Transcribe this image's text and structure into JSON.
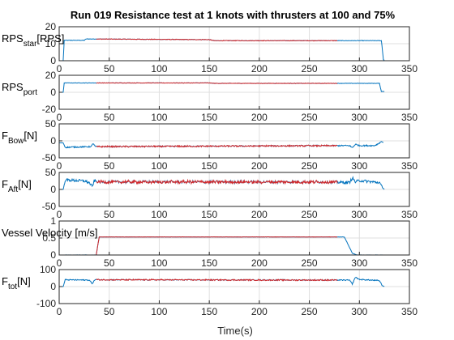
{
  "chart_data": {
    "type": "line",
    "title": "Run 019 Resistance test at 1 knots with thrusters at 100 and 75%",
    "xlabel": "Time(s)",
    "xlim": [
      0,
      350
    ],
    "xticks": [
      "0",
      "50",
      "100",
      "150",
      "200",
      "250",
      "300",
      "350"
    ],
    "series_colors": {
      "full_run": "#0072BD",
      "steady_window": "#D62728"
    },
    "steady_window_x": [
      37,
      278
    ],
    "panels": [
      {
        "id": "rps-star",
        "ylabel": "RPS",
        "ylabel_sub": "star",
        "ylabel_suffix": "[RPS]",
        "ylim": [
          0,
          20
        ],
        "yticks": [
          "0",
          "10",
          "20"
        ],
        "noise": 0.15,
        "profile": [
          [
            0,
            0
          ],
          [
            4,
            0
          ],
          [
            5,
            12
          ],
          [
            25,
            12
          ],
          [
            27,
            12.8
          ],
          [
            150,
            12.4
          ],
          [
            155,
            11.8
          ],
          [
            322,
            11.8
          ],
          [
            324,
            0.6
          ],
          [
            325,
            0.3
          ]
        ]
      },
      {
        "id": "rps-port",
        "ylabel": "RPS",
        "ylabel_sub": "port",
        "ylabel_suffix": "",
        "ylim": [
          -20,
          20
        ],
        "yticks": [
          "-20",
          "0",
          "20"
        ],
        "noise": 0.2,
        "profile": [
          [
            0,
            0
          ],
          [
            4,
            0
          ],
          [
            5,
            11
          ],
          [
            150,
            11
          ],
          [
            155,
            10.5
          ],
          [
            320,
            10.5
          ],
          [
            322,
            1
          ],
          [
            325,
            1
          ]
        ]
      },
      {
        "id": "f-bow",
        "ylabel": "F",
        "ylabel_sub": "Bow",
        "ylabel_suffix": "[N]",
        "ylim": [
          -50,
          50
        ],
        "yticks": [
          "-50",
          "0",
          "50"
        ],
        "noise": 1.8,
        "profile": [
          [
            0,
            -6
          ],
          [
            4,
            -6
          ],
          [
            6,
            -19
          ],
          [
            32,
            -17
          ],
          [
            34,
            -7
          ],
          [
            36,
            -17
          ],
          [
            40,
            -17
          ],
          [
            290,
            -14
          ],
          [
            293,
            -20
          ],
          [
            296,
            -10
          ],
          [
            300,
            -14
          ],
          [
            315,
            -14
          ],
          [
            318,
            -10
          ],
          [
            322,
            -2
          ],
          [
            324,
            -5
          ]
        ]
      },
      {
        "id": "f-aft",
        "ylabel": "F",
        "ylabel_sub": "Aft",
        "ylabel_suffix": "[N]",
        "ylim": [
          -50,
          50
        ],
        "yticks": [
          "-50",
          "0",
          "50"
        ],
        "noise": 4,
        "profile": [
          [
            0,
            0
          ],
          [
            4,
            0
          ],
          [
            6,
            28
          ],
          [
            25,
            25
          ],
          [
            30,
            20
          ],
          [
            33,
            8
          ],
          [
            35,
            25
          ],
          [
            40,
            22
          ],
          [
            270,
            22
          ],
          [
            290,
            20
          ],
          [
            293,
            34
          ],
          [
            296,
            22
          ],
          [
            300,
            26
          ],
          [
            320,
            20
          ],
          [
            323,
            5
          ],
          [
            325,
            0
          ]
        ]
      },
      {
        "id": "vessel-velocity",
        "ylabel": "Vessel Velocity",
        "ylabel_sub": "",
        "ylabel_suffix": " [m/s]",
        "ylim": [
          0,
          1
        ],
        "yticks": [
          "0",
          "0.5",
          "1"
        ],
        "noise": 0.004,
        "profile": [
          [
            0,
            0
          ],
          [
            30,
            0
          ],
          [
            37,
            0
          ],
          [
            40,
            0.53
          ],
          [
            285,
            0.53
          ],
          [
            293,
            0.05
          ],
          [
            298,
            0
          ],
          [
            325,
            0
          ]
        ]
      },
      {
        "id": "f-tot",
        "ylabel": "F",
        "ylabel_sub": "tot",
        "ylabel_suffix": "[N]",
        "ylim": [
          -100,
          100
        ],
        "yticks": [
          "-100",
          "0",
          "100"
        ],
        "noise": 3,
        "profile": [
          [
            0,
            0
          ],
          [
            4,
            0
          ],
          [
            6,
            40
          ],
          [
            30,
            38
          ],
          [
            33,
            18
          ],
          [
            36,
            42
          ],
          [
            40,
            40
          ],
          [
            290,
            38
          ],
          [
            293,
            15
          ],
          [
            296,
            55
          ],
          [
            300,
            42
          ],
          [
            320,
            35
          ],
          [
            323,
            5
          ],
          [
            325,
            0
          ]
        ]
      }
    ]
  }
}
